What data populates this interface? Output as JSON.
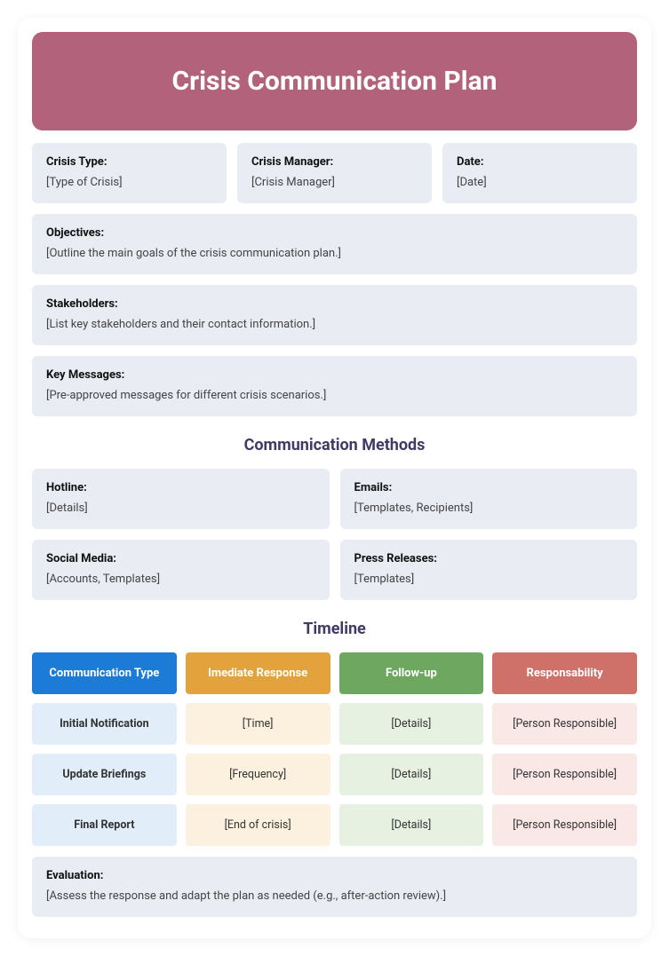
{
  "colors": {
    "header_bg": "#b2627a",
    "box_bg": "#e9ecf3",
    "section_title": "#3f3b66",
    "th_blue": "#1d7bd8",
    "th_orange": "#e3a23c",
    "th_green": "#6ea760",
    "th_red": "#cf7169",
    "td_blue": "#e1eef9",
    "td_orange": "#fcf1de",
    "td_green": "#e6f1e1",
    "td_red": "#f9e8e6",
    "td_text": "#333333"
  },
  "header": {
    "title": "Crisis Communication Plan"
  },
  "meta": {
    "crisis_type": {
      "label": "Crisis Type:",
      "value": "[Type of Crisis]"
    },
    "crisis_manager": {
      "label": "Crisis Manager:",
      "value": "[Crisis Manager]"
    },
    "date": {
      "label": "Date:",
      "value": "[Date]"
    }
  },
  "objectives": {
    "label": "Objectives:",
    "value": "[Outline the main goals of the crisis communication plan.]"
  },
  "stakeholders": {
    "label": "Stakeholders:",
    "value": "[List key stakeholders and their contact information.]"
  },
  "key_messages": {
    "label": "Key Messages:",
    "value": "[Pre-approved messages for different crisis scenarios.]"
  },
  "methods": {
    "section_title": "Communication Methods",
    "hotline": {
      "label": "Hotline:",
      "value": "[Details]"
    },
    "emails": {
      "label": "Emails:",
      "value": "[Templates, Recipients]"
    },
    "social": {
      "label": "Social Media:",
      "value": "[Accounts, Templates]"
    },
    "press": {
      "label": "Press Releases:",
      "value": "[Templates]"
    }
  },
  "timeline": {
    "section_title": "Timeline",
    "headers": {
      "col1": "Communication Type",
      "col2": "Imediate Response",
      "col3": "Follow-up",
      "col4": "Responsability"
    },
    "rows": [
      {
        "type": "Initial Notification",
        "immediate": "[Time]",
        "followup": "[Details]",
        "resp": "[Person Responsible]"
      },
      {
        "type": "Update Briefings",
        "immediate": "[Frequency]",
        "followup": "[Details]",
        "resp": "[Person Responsible]"
      },
      {
        "type": "Final Report",
        "immediate": "[End of crisis]",
        "followup": "[Details]",
        "resp": "[Person Responsible]"
      }
    ]
  },
  "evaluation": {
    "label": "Evaluation:",
    "value": "[Assess the response and adapt the plan as needed (e.g., after-action review).]"
  }
}
